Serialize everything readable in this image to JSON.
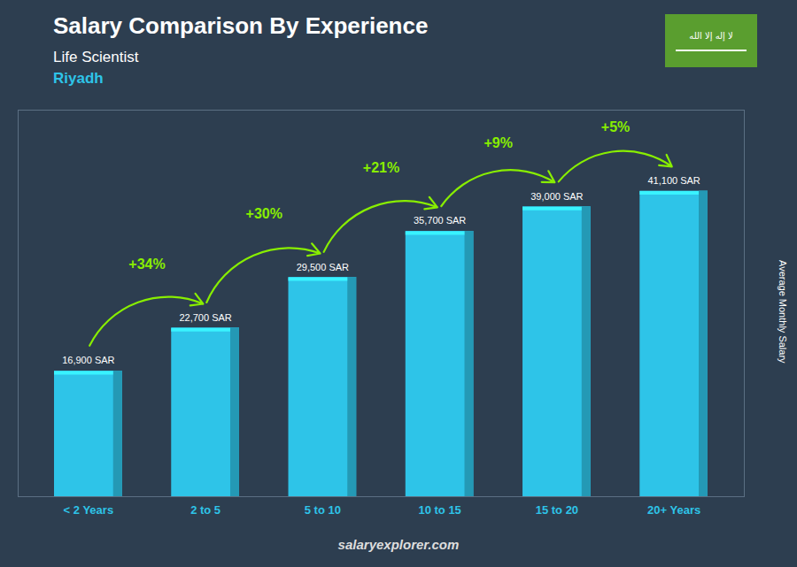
{
  "chart_data": {
    "type": "bar",
    "title": "Salary Comparison By Experience",
    "subtitle": [
      "Life Scientist",
      "Riyadh"
    ],
    "ylabel": "Average Monthly Salary",
    "categories": [
      "< 2 Years",
      "2 to 5",
      "5 to 10",
      "10 to 15",
      "15 to 20",
      "20+ Years"
    ],
    "values": [
      16900,
      22700,
      29500,
      35700,
      39000,
      41100
    ],
    "value_labels": [
      "16,900 SAR",
      "22,700 SAR",
      "29,500 SAR",
      "35,700 SAR",
      "39,000 SAR",
      "41,100 SAR"
    ],
    "data_labels": true,
    "color": "#2ec4e8",
    "ylim": [
      0,
      52000
    ],
    "yticks": [],
    "grid": false,
    "tick_labels": "x",
    "annotations": [
      {
        "text": "+34%",
        "color": "#88ee00"
      },
      {
        "text": "+30%",
        "color": "#88ee00"
      },
      {
        "text": "+21%",
        "color": "#88ee00"
      },
      {
        "text": "+9%",
        "color": "#88ee00"
      },
      {
        "text": "+5%",
        "color": "#88ee00"
      }
    ],
    "flag_text": "لا إله إلا الله",
    "caption": "salaryexplorer.com"
  }
}
